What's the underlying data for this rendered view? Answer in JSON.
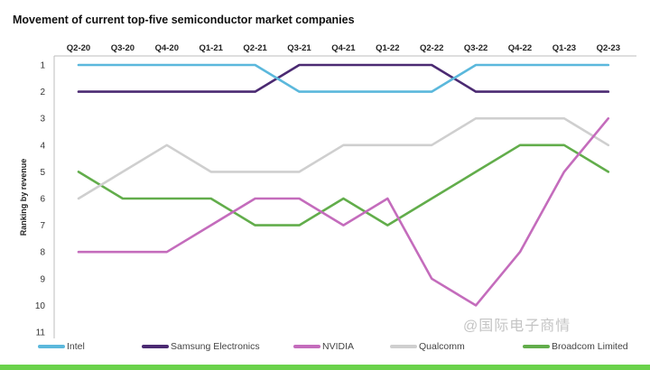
{
  "chart_data": {
    "type": "line",
    "title": "Movement of current top-five semiconductor market companies",
    "ylabel": "Ranking by revenue",
    "xlabel": "",
    "x": [
      "Q2-20",
      "Q3-20",
      "Q4-20",
      "Q1-21",
      "Q2-21",
      "Q3-21",
      "Q4-21",
      "Q1-22",
      "Q2-22",
      "Q3-22",
      "Q4-22",
      "Q1-23",
      "Q2-23"
    ],
    "y_ticks": [
      "1",
      "2",
      "3",
      "4",
      "5",
      "6",
      "7",
      "8",
      "9",
      "10",
      "11"
    ],
    "ylim": [
      1,
      11
    ],
    "y_inverted": true,
    "x_axis_position": "top",
    "grid": false,
    "legend_position": "bottom",
    "series": [
      {
        "name": "Intel",
        "color": "#5bb8dc",
        "values": [
          1,
          1,
          1,
          1,
          1,
          2,
          2,
          2,
          2,
          1,
          1,
          1,
          1
        ]
      },
      {
        "name": "Samsung Electronics",
        "color": "#4b2a72",
        "values": [
          2,
          2,
          2,
          2,
          2,
          1,
          1,
          1,
          1,
          2,
          2,
          2,
          2
        ]
      },
      {
        "name": "NVIDIA",
        "color": "#c46cbc",
        "values": [
          8,
          8,
          8,
          7,
          6,
          6,
          7,
          6,
          9,
          10,
          8,
          5,
          3
        ]
      },
      {
        "name": "Qualcomm",
        "color": "#cfcfcf",
        "values": [
          6,
          5,
          4,
          5,
          5,
          5,
          4,
          4,
          4,
          3,
          3,
          3,
          4
        ]
      },
      {
        "name": "Broadcom Limited",
        "color": "#62ad4b",
        "values": [
          5,
          6,
          6,
          6,
          7,
          7,
          6,
          7,
          6,
          5,
          4,
          4,
          5
        ]
      }
    ]
  },
  "watermark": "@国际电子商情"
}
